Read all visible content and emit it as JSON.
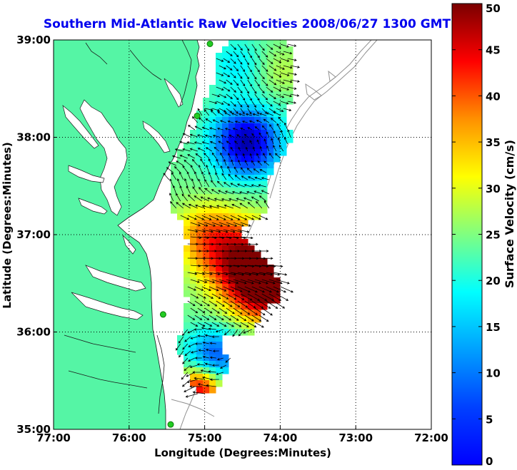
{
  "title": "Southern Mid-Atlantic Raw Velocities 2008/06/27 1300 GMT",
  "x_axis": {
    "label": "Longitude (Degrees:Minutes)",
    "min": -77,
    "max": -72,
    "ticks": [
      {
        "value": -77,
        "label": "77:00"
      },
      {
        "value": -76,
        "label": "76:00"
      },
      {
        "value": -75,
        "label": "75:00"
      },
      {
        "value": -74,
        "label": "74:00"
      },
      {
        "value": -73,
        "label": "73:00"
      },
      {
        "value": -72,
        "label": "72:00"
      }
    ]
  },
  "y_axis": {
    "label": "Latitude (Degrees:Minutes)",
    "min": 35,
    "max": 39,
    "ticks": [
      {
        "value": 39,
        "label": "39:00"
      },
      {
        "value": 38,
        "label": "38:00"
      },
      {
        "value": 37,
        "label": "37:00"
      },
      {
        "value": 36,
        "label": "36:00"
      },
      {
        "value": 35,
        "label": "35:00"
      }
    ]
  },
  "colorbar": {
    "label": "Surface Velocity (cm/s)",
    "min": 0,
    "max": 50,
    "ticks": [
      {
        "value": 50,
        "label": "50"
      },
      {
        "value": 45,
        "label": "45"
      },
      {
        "value": 40,
        "label": "40"
      },
      {
        "value": 35,
        "label": "35"
      },
      {
        "value": 30,
        "label": "30"
      },
      {
        "value": 25,
        "label": "25"
      },
      {
        "value": 20,
        "label": "20"
      },
      {
        "value": 15,
        "label": "15"
      },
      {
        "value": 10,
        "label": "10"
      },
      {
        "value": 5,
        "label": "5"
      },
      {
        "value": 0,
        "label": "0"
      }
    ],
    "colormap": "jet"
  },
  "colors": {
    "land": "#55f5a5",
    "title": "#0000ee",
    "arrows": "#000000",
    "bathymetry": "#909090",
    "station": "#22cc22"
  },
  "map": {
    "grid": true,
    "grid_style": "dotted",
    "station_markers": [
      {
        "lon": -74.93,
        "lat": 38.96
      },
      {
        "lon": -75.1,
        "lat": 38.22
      },
      {
        "lon": -75.55,
        "lat": 36.18
      },
      {
        "lon": -75.45,
        "lat": 35.05
      }
    ]
  }
}
